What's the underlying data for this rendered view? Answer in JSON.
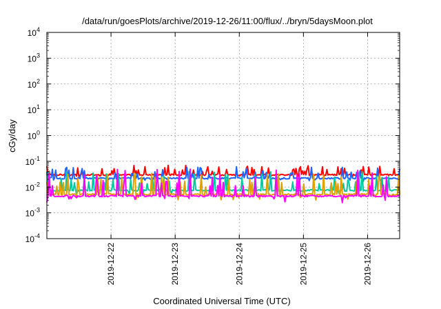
{
  "chart_data": {
    "type": "line",
    "title": "/data/run/goesPlots/archive/2019-12-26/11:00/flux/../bryn/5daysMoon.plot",
    "xlabel": "Coordinated Universal Time (UTC)",
    "ylabel": "cGy/day",
    "x_range": [
      "2019-12-21T00:00",
      "2019-12-26T12:00"
    ],
    "y_scale": "log",
    "ylim": [
      0.0001,
      10000
    ],
    "grid": true,
    "x_ticks": [
      "2019-12-22",
      "2019-12-23",
      "2019-12-24",
      "2019-12-25",
      "2019-12-26"
    ],
    "y_ticks": [
      {
        "base": "10",
        "exp": "4"
      },
      {
        "base": "10",
        "exp": "3"
      },
      {
        "base": "10",
        "exp": "2"
      },
      {
        "base": "10",
        "exp": "1"
      },
      {
        "base": "10",
        "exp": "0"
      },
      {
        "base": "10",
        "exp": "-1"
      },
      {
        "base": "10",
        "exp": "-2"
      },
      {
        "base": "10",
        "exp": "-3"
      },
      {
        "base": "10",
        "exp": "-4"
      }
    ],
    "series": [
      {
        "color": "#ff0000",
        "base": 0.03,
        "amp": 0.25
      },
      {
        "color": "#1e64ff",
        "base": 0.022,
        "amp": 0.3
      },
      {
        "color": "#00c8a0",
        "base": 0.0075,
        "amp": 0.5
      },
      {
        "color": "#e0a000",
        "base": 0.0052,
        "amp": 0.55
      },
      {
        "color": "#ff00ff",
        "base": 0.0045,
        "amp": 0.7
      }
    ]
  }
}
